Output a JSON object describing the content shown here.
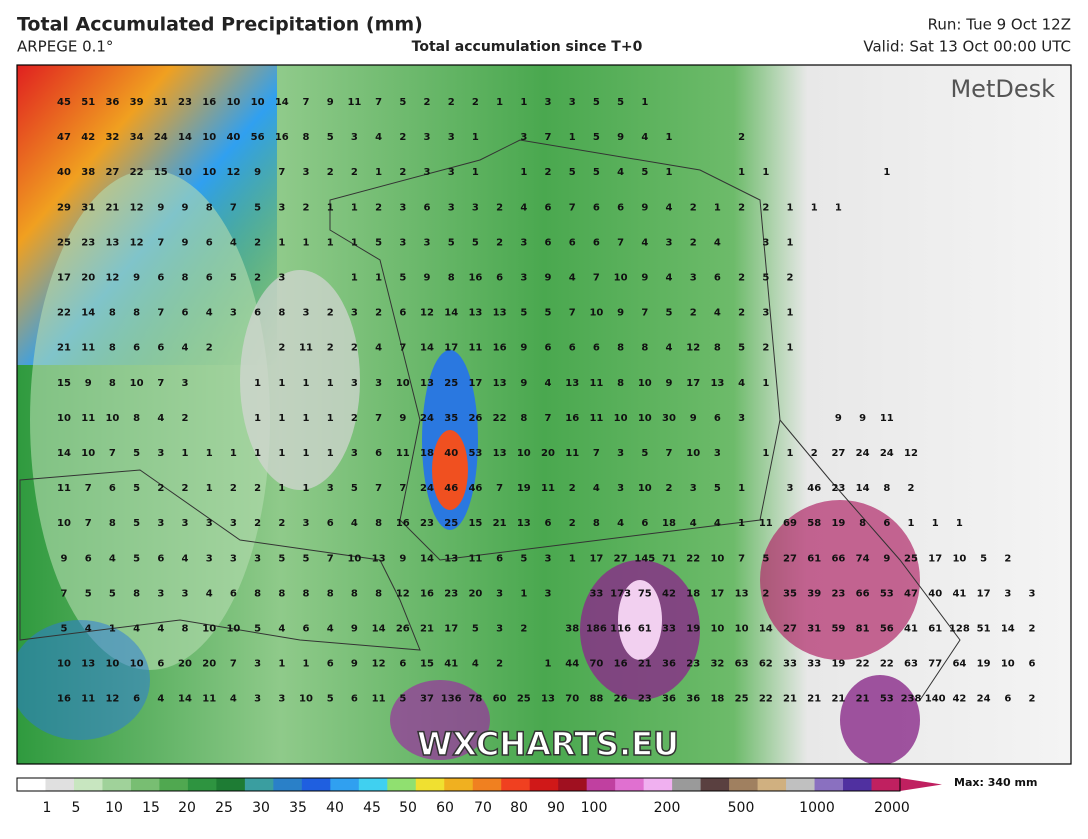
{
  "header": {
    "title": "Total Accumulated Precipitation (mm)",
    "model": "ARPEGE 0.1°",
    "subtitle": "Total accumulation since T+0",
    "run": "Run: Tue 9 Oct 12Z",
    "valid": "Valid: Sat 13 Oct 00:00 UTC"
  },
  "logo": "MetDesk",
  "watermark": "WXCHARTS.EU",
  "grid": {
    "rows": [
      [
        45,
        51,
        36,
        39,
        31,
        23,
        16,
        10,
        10,
        14,
        7,
        9,
        11,
        7,
        5,
        2,
        2,
        2,
        1,
        1,
        3,
        3,
        5,
        5,
        1
      ],
      [
        47,
        42,
        32,
        34,
        24,
        14,
        10,
        40,
        56,
        16,
        8,
        5,
        3,
        4,
        2,
        3,
        3,
        1,
        null,
        3,
        7,
        1,
        5,
        9,
        4,
        1,
        null,
        null,
        2
      ],
      [
        40,
        38,
        27,
        22,
        15,
        10,
        10,
        12,
        9,
        7,
        3,
        2,
        2,
        1,
        2,
        3,
        3,
        1,
        null,
        1,
        2,
        5,
        5,
        4,
        5,
        1,
        null,
        null,
        1,
        1,
        null,
        null,
        null,
        null,
        1
      ],
      [
        29,
        31,
        21,
        12,
        9,
        9,
        8,
        7,
        5,
        3,
        2,
        1,
        1,
        2,
        3,
        6,
        3,
        3,
        2,
        4,
        6,
        7,
        6,
        6,
        9,
        4,
        2,
        1,
        2,
        2,
        1,
        1,
        1
      ],
      [
        25,
        23,
        13,
        12,
        7,
        9,
        6,
        4,
        2,
        1,
        1,
        1,
        1,
        5,
        3,
        3,
        5,
        5,
        2,
        3,
        6,
        6,
        6,
        7,
        4,
        3,
        2,
        4,
        null,
        3,
        1
      ],
      [
        17,
        20,
        12,
        9,
        6,
        8,
        6,
        5,
        2,
        3,
        null,
        null,
        1,
        1,
        5,
        9,
        8,
        16,
        6,
        3,
        9,
        4,
        7,
        10,
        9,
        4,
        3,
        6,
        2,
        5,
        2
      ],
      [
        22,
        14,
        8,
        8,
        7,
        6,
        4,
        3,
        6,
        8,
        3,
        2,
        3,
        2,
        6,
        12,
        14,
        13,
        13,
        5,
        5,
        7,
        10,
        9,
        7,
        5,
        2,
        4,
        2,
        3,
        1
      ],
      [
        21,
        11,
        8,
        6,
        6,
        4,
        2,
        null,
        null,
        2,
        11,
        2,
        2,
        4,
        7,
        14,
        17,
        11,
        16,
        9,
        6,
        6,
        6,
        8,
        8,
        4,
        12,
        8,
        5,
        2,
        1
      ],
      [
        15,
        9,
        8,
        10,
        7,
        3,
        null,
        null,
        1,
        1,
        1,
        1,
        3,
        3,
        10,
        13,
        25,
        17,
        13,
        9,
        4,
        13,
        11,
        8,
        10,
        9,
        17,
        13,
        4,
        1
      ],
      [
        10,
        11,
        10,
        8,
        4,
        2,
        null,
        null,
        1,
        1,
        1,
        1,
        2,
        7,
        9,
        24,
        35,
        26,
        22,
        8,
        7,
        16,
        11,
        10,
        10,
        30,
        9,
        6,
        3,
        null,
        null,
        null,
        9,
        9,
        11
      ],
      [
        14,
        10,
        7,
        5,
        3,
        1,
        1,
        1,
        1,
        1,
        1,
        1,
        3,
        6,
        11,
        18,
        40,
        53,
        13,
        10,
        20,
        11,
        7,
        3,
        5,
        7,
        10,
        3,
        null,
        1,
        1,
        2,
        27,
        24,
        24,
        12
      ],
      [
        11,
        7,
        6,
        5,
        2,
        2,
        1,
        2,
        2,
        1,
        1,
        3,
        5,
        7,
        7,
        24,
        46,
        46,
        7,
        19,
        11,
        2,
        4,
        3,
        10,
        2,
        3,
        5,
        1,
        null,
        3,
        46,
        23,
        14,
        8,
        2
      ],
      [
        10,
        7,
        8,
        5,
        3,
        3,
        3,
        3,
        2,
        2,
        3,
        6,
        4,
        8,
        16,
        23,
        25,
        15,
        21,
        13,
        6,
        2,
        8,
        4,
        6,
        18,
        4,
        4,
        1,
        11,
        69,
        58,
        19,
        8,
        6,
        1,
        1,
        1
      ],
      [
        9,
        6,
        4,
        5,
        6,
        4,
        3,
        3,
        3,
        5,
        5,
        7,
        10,
        13,
        9,
        14,
        13,
        11,
        6,
        5,
        3,
        1,
        17,
        27,
        145,
        71,
        22,
        10,
        7,
        5,
        27,
        61,
        66,
        74,
        9,
        25,
        17,
        10,
        5,
        2
      ],
      [
        7,
        5,
        5,
        8,
        3,
        3,
        4,
        6,
        8,
        8,
        8,
        8,
        8,
        8,
        12,
        16,
        23,
        20,
        3,
        1,
        3,
        null,
        33,
        173,
        75,
        42,
        18,
        17,
        13,
        2,
        35,
        39,
        23,
        66,
        53,
        47,
        40,
        41,
        17,
        3,
        3
      ],
      [
        5,
        4,
        1,
        4,
        4,
        8,
        10,
        10,
        5,
        4,
        6,
        4,
        9,
        14,
        26,
        21,
        17,
        5,
        3,
        2,
        null,
        38,
        186,
        116,
        61,
        33,
        19,
        10,
        10,
        14,
        27,
        31,
        59,
        81,
        56,
        41,
        61,
        128,
        51,
        14,
        2
      ],
      [
        10,
        13,
        10,
        10,
        6,
        20,
        20,
        7,
        3,
        1,
        1,
        6,
        9,
        12,
        6,
        15,
        41,
        4,
        2,
        null,
        1,
        44,
        70,
        16,
        21,
        36,
        23,
        32,
        63,
        62,
        33,
        33,
        19,
        22,
        22,
        63,
        77,
        64,
        19,
        10,
        6
      ],
      [
        16,
        11,
        12,
        6,
        4,
        14,
        11,
        4,
        3,
        3,
        10,
        5,
        6,
        11,
        5,
        37,
        136,
        78,
        60,
        25,
        13,
        70,
        88,
        26,
        23,
        36,
        36,
        18,
        25,
        22,
        21,
        21,
        21,
        21,
        53,
        238,
        140,
        42,
        24,
        6,
        2
      ]
    ]
  },
  "colorbar": {
    "labels": [
      1,
      5,
      10,
      15,
      20,
      25,
      30,
      35,
      40,
      45,
      50,
      60,
      70,
      80,
      90,
      100,
      200,
      500,
      1000,
      2000
    ],
    "max_label": "Max: 340 mm"
  }
}
